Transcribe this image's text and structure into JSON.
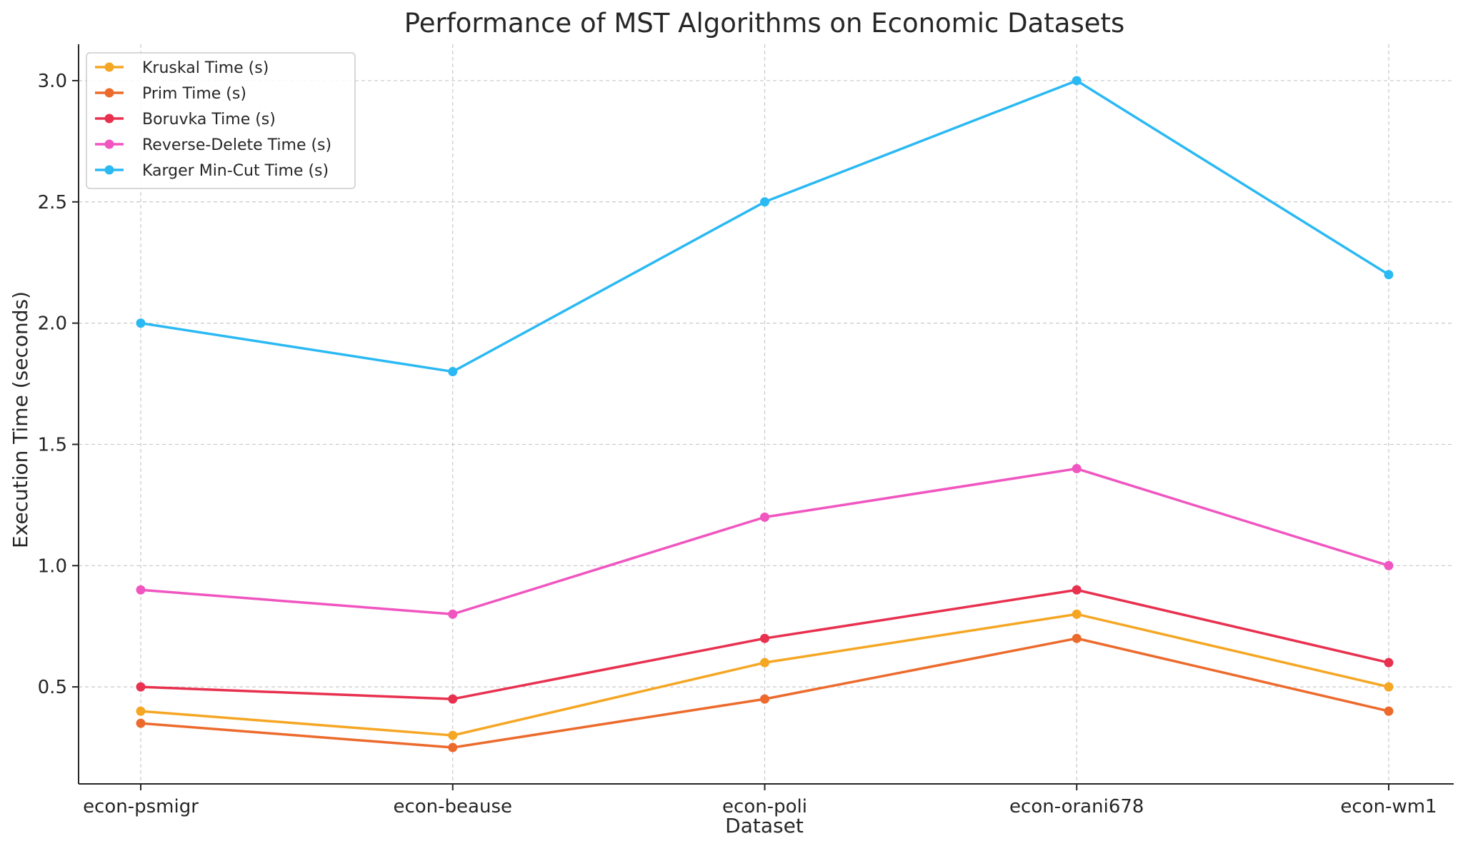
{
  "chart_data": {
    "type": "line",
    "title": "Performance of MST Algorithms on Economic Datasets",
    "xlabel": "Dataset",
    "ylabel": "Execution Time (seconds)",
    "categories": [
      "econ-psmigr",
      "econ-beause",
      "econ-poli",
      "econ-orani678",
      "econ-wm1"
    ],
    "ylim": [
      0.1,
      3.15
    ],
    "yticks": [
      0.5,
      1.0,
      1.5,
      2.0,
      2.5,
      3.0
    ],
    "ytick_labels": [
      "0.5",
      "1.0",
      "1.5",
      "2.0",
      "2.5",
      "3.0"
    ],
    "grid": true,
    "legend_position": "top-left",
    "series": [
      {
        "name": "Kruskal Time (s)",
        "color": "#f5a623",
        "values": [
          0.4,
          0.3,
          0.6,
          0.8,
          0.5
        ]
      },
      {
        "name": "Prim Time (s)",
        "color": "#ec6a2c",
        "values": [
          0.35,
          0.25,
          0.45,
          0.7,
          0.4
        ]
      },
      {
        "name": "Boruvka Time (s)",
        "color": "#e8304f",
        "values": [
          0.5,
          0.45,
          0.7,
          0.9,
          0.6
        ]
      },
      {
        "name": "Reverse-Delete Time (s)",
        "color": "#f055c0",
        "values": [
          0.9,
          0.8,
          1.2,
          1.4,
          1.0
        ]
      },
      {
        "name": "Karger Min-Cut Time (s)",
        "color": "#2ab9f3",
        "values": [
          2.0,
          1.8,
          2.5,
          3.0,
          2.2
        ]
      }
    ]
  }
}
